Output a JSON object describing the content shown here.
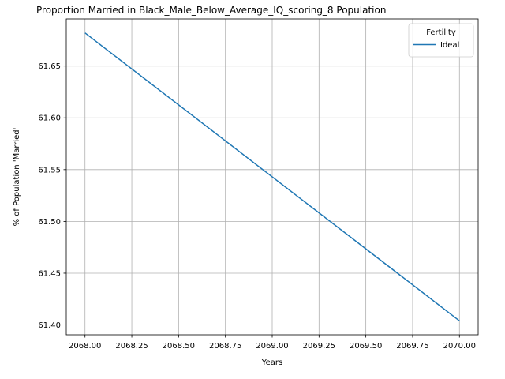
{
  "chart_data": {
    "type": "line",
    "title": "Proportion Married in Black_Male_Below_Average_IQ_scoring_8 Population",
    "xlabel": "Years",
    "ylabel": "% of Population 'Married'",
    "xlim": [
      2067.9,
      2070.1
    ],
    "ylim": [
      61.3905,
      61.6955
    ],
    "x_ticks": [
      2068.0,
      2068.25,
      2068.5,
      2068.75,
      2069.0,
      2069.25,
      2069.5,
      2069.75,
      2070.0
    ],
    "x_tick_labels": [
      "2068.00",
      "2068.25",
      "2068.50",
      "2068.75",
      "2069.00",
      "2069.25",
      "2069.50",
      "2069.75",
      "2070.00"
    ],
    "y_ticks": [
      61.4,
      61.45,
      61.5,
      61.55,
      61.6,
      61.65
    ],
    "y_tick_labels": [
      "61.40",
      "61.45",
      "61.50",
      "61.55",
      "61.60",
      "61.65"
    ],
    "grid": true,
    "legend": {
      "title": "Fertility",
      "placement": "top-right"
    },
    "series": [
      {
        "name": "Ideal",
        "color": "#1f77b4",
        "x": [
          2068,
          2070
        ],
        "y": [
          61.682,
          61.404
        ]
      }
    ]
  }
}
